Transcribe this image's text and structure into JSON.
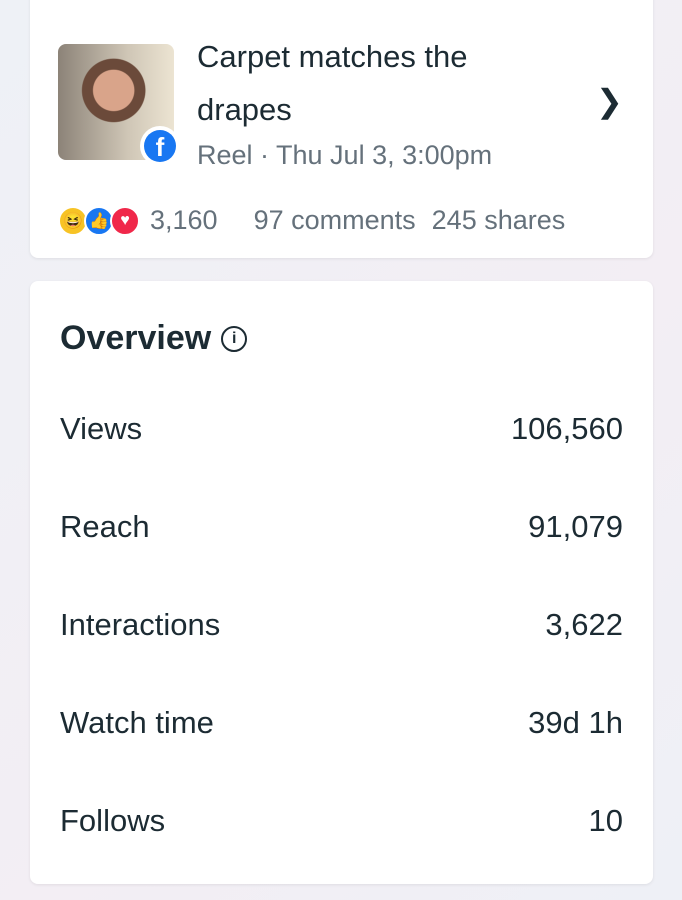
{
  "post": {
    "title": "Carpet matches the drapes",
    "meta": "Reel · Thu Jul 3, 3:00pm",
    "reaction_count": "3,160",
    "comments": "97 comments",
    "shares": "245 shares",
    "platform_icon": "facebook-icon",
    "reactions": [
      "haha",
      "like",
      "love"
    ]
  },
  "overview": {
    "title": "Overview",
    "metrics": [
      {
        "label": "Views",
        "value": "106,560"
      },
      {
        "label": "Reach",
        "value": "91,079"
      },
      {
        "label": "Interactions",
        "value": "3,622"
      },
      {
        "label": "Watch time",
        "value": "39d 1h"
      },
      {
        "label": "Follows",
        "value": "10"
      }
    ]
  }
}
